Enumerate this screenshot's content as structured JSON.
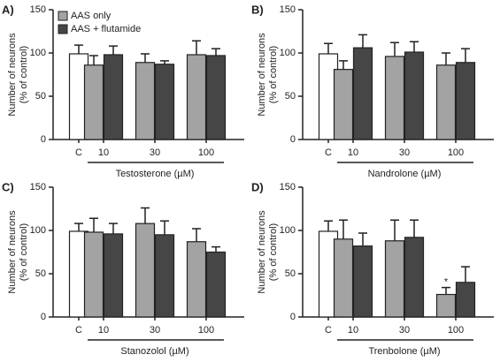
{
  "chart_data": [
    {
      "type": "bar",
      "panel_label": "A)",
      "y_label": [
        "Number of neurons",
        "(% of control)"
      ],
      "x_label": "Testosterone (µM)",
      "categories": [
        "C",
        "10",
        "30",
        "100"
      ],
      "ylim": [
        0,
        150
      ],
      "yticks": [
        0,
        50,
        100,
        150
      ],
      "legend": "top-left",
      "series": [
        {
          "color": "#ffffff",
          "values": [
            99,
            null,
            null,
            null
          ],
          "errors": [
            10,
            null,
            null,
            null
          ]
        },
        {
          "name": "AAS only",
          "color": "#a3a3a3",
          "values": [
            null,
            86,
            89,
            98
          ],
          "errors": [
            null,
            11,
            10,
            16
          ]
        },
        {
          "name": "AAS + flutamide",
          "color": "#464646",
          "values": [
            null,
            98,
            87,
            97
          ],
          "errors": [
            null,
            10,
            4,
            8
          ]
        }
      ]
    },
    {
      "type": "bar",
      "panel_label": "B)",
      "y_label": [
        "Number of neurons",
        "(% of control)"
      ],
      "x_label": "Nandrolone (µM)",
      "categories": [
        "C",
        "10",
        "30",
        "100"
      ],
      "ylim": [
        0,
        150
      ],
      "yticks": [
        0,
        50,
        100,
        150
      ],
      "series": [
        {
          "color": "#ffffff",
          "values": [
            99,
            null,
            null,
            null
          ],
          "errors": [
            12,
            null,
            null,
            null
          ]
        },
        {
          "color": "#a3a3a3",
          "values": [
            null,
            81,
            96,
            86
          ],
          "errors": [
            null,
            10,
            16,
            14
          ]
        },
        {
          "color": "#464646",
          "values": [
            null,
            106,
            101,
            89
          ],
          "errors": [
            null,
            15,
            12,
            16
          ]
        }
      ]
    },
    {
      "type": "bar",
      "panel_label": "C)",
      "y_label": [
        "Number of neurons",
        "(% of control)"
      ],
      "x_label": "Stanozolol (µM)",
      "categories": [
        "C",
        "10",
        "30",
        "100"
      ],
      "ylim": [
        0,
        150
      ],
      "yticks": [
        0,
        50,
        100,
        150
      ],
      "series": [
        {
          "color": "#ffffff",
          "values": [
            99,
            null,
            null,
            null
          ],
          "errors": [
            9,
            null,
            null,
            null
          ]
        },
        {
          "color": "#a3a3a3",
          "values": [
            null,
            98,
            108,
            87
          ],
          "errors": [
            null,
            16,
            18,
            15
          ]
        },
        {
          "color": "#464646",
          "values": [
            null,
            96,
            95,
            75
          ],
          "errors": [
            null,
            12,
            16,
            6
          ]
        }
      ]
    },
    {
      "type": "bar",
      "panel_label": "D)",
      "y_label": [
        "Number of neurons",
        "(% of control)"
      ],
      "x_label": "Trenbolone (µM)",
      "categories": [
        "C",
        "10",
        "30",
        "100"
      ],
      "ylim": [
        0,
        150
      ],
      "yticks": [
        0,
        50,
        100,
        150
      ],
      "annotations": [
        {
          "text": "*",
          "series": 1,
          "index": 3
        }
      ],
      "series": [
        {
          "color": "#ffffff",
          "values": [
            99,
            null,
            null,
            null
          ],
          "errors": [
            12,
            null,
            null,
            null
          ]
        },
        {
          "color": "#a3a3a3",
          "values": [
            null,
            90,
            88,
            26
          ],
          "errors": [
            null,
            22,
            24,
            8
          ]
        },
        {
          "color": "#464646",
          "values": [
            null,
            82,
            92,
            40
          ],
          "errors": [
            null,
            15,
            20,
            18
          ]
        }
      ]
    }
  ]
}
